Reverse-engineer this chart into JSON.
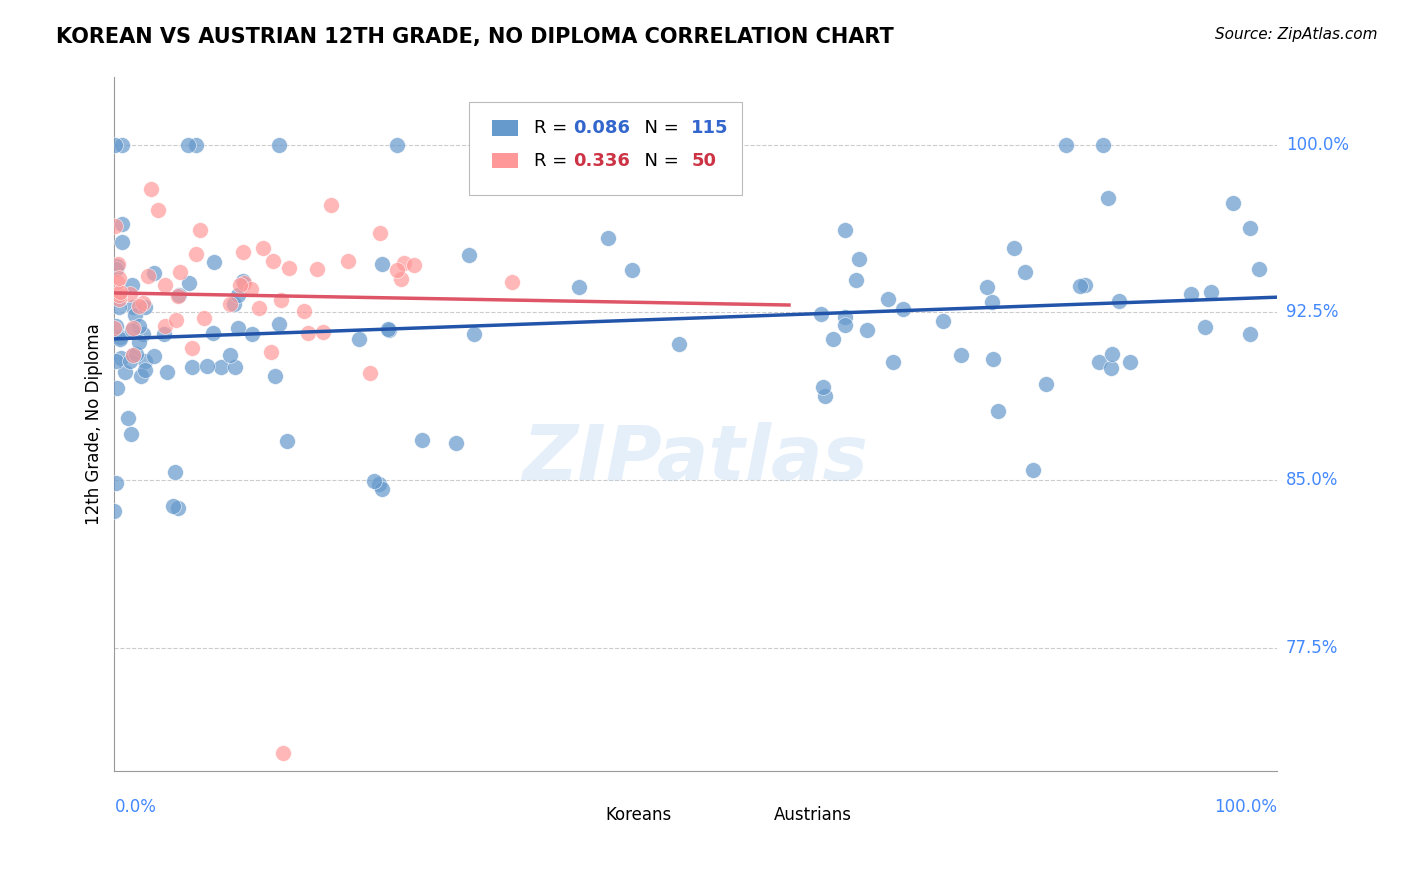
{
  "title": "KOREAN VS AUSTRIAN 12TH GRADE, NO DIPLOMA CORRELATION CHART",
  "source": "Source: ZipAtlas.com",
  "ylabel": "12th Grade, No Diploma",
  "ytick_values": [
    1.0,
    0.925,
    0.85,
    0.775
  ],
  "ytick_labels": [
    "100.0%",
    "92.5%",
    "85.0%",
    "77.5%"
  ],
  "xlim": [
    0.0,
    1.0
  ],
  "ylim": [
    0.7,
    1.03
  ],
  "legend_korean_R": "0.086",
  "legend_korean_N": "115",
  "legend_austrian_R": "0.336",
  "legend_austrian_N": "50",
  "korean_color": "#6699CC",
  "austrian_color": "#FF9999",
  "korean_line_color": "#2255AA",
  "austrian_line_color": "#DD5566",
  "r_n_color_korean": "#3366CC",
  "r_n_color_austrian": "#CC3344",
  "background_color": "#FFFFFF",
  "watermark": "ZIPatlas",
  "grid_color": "#CCCCCC",
  "axis_label_color": "#4488FF"
}
